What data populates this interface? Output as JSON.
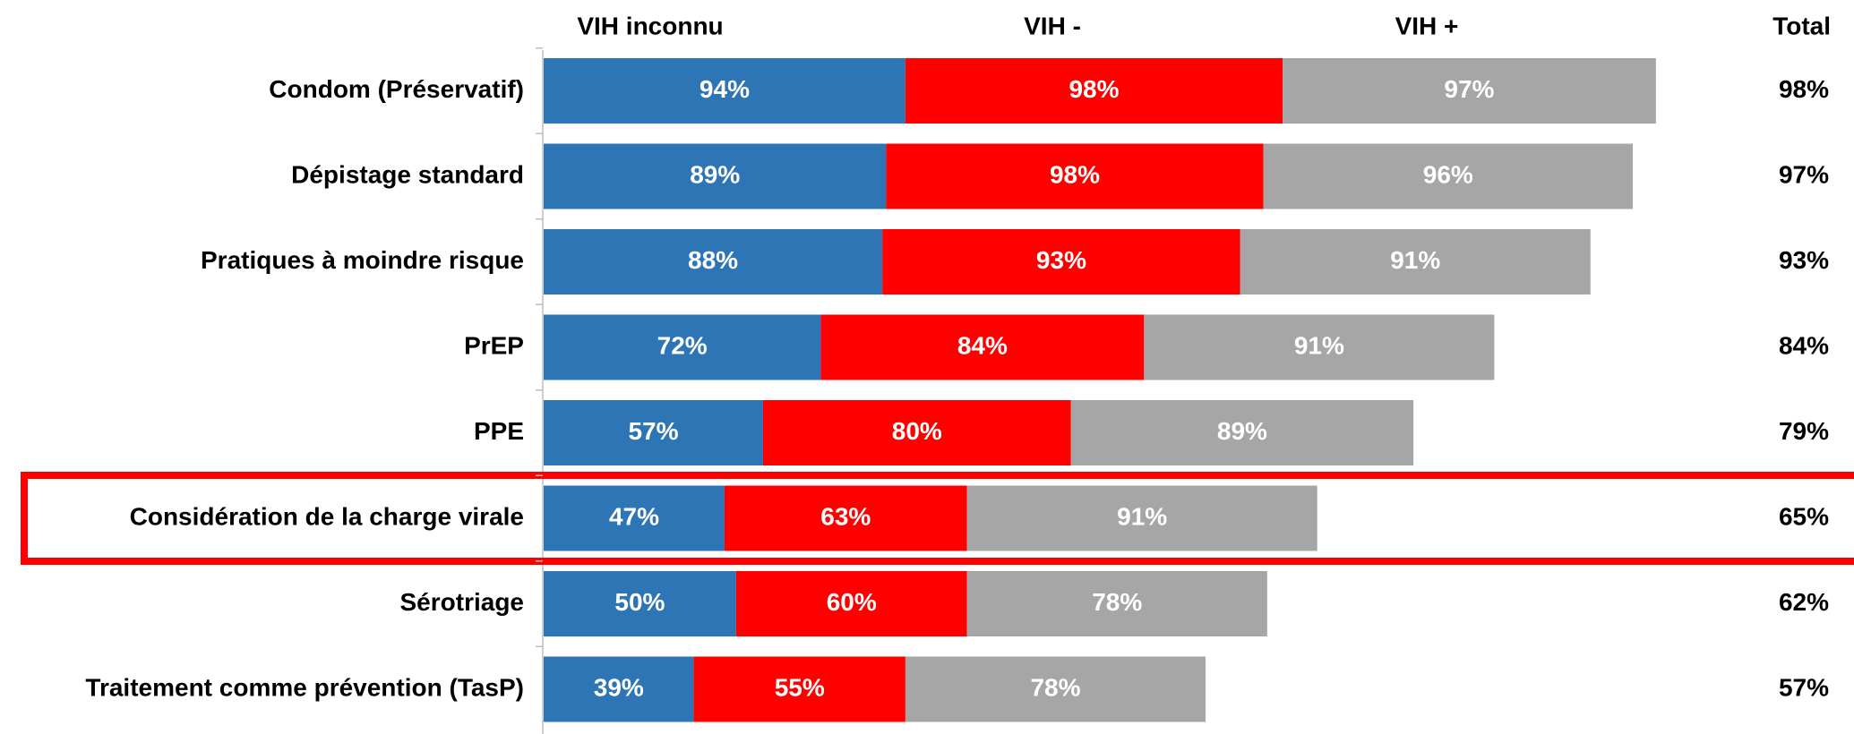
{
  "chart_data": {
    "type": "stacked_bar_horizontal",
    "categories": [
      "Condom (Préservatif)",
      "Dépistage standard",
      "Pratiques à moindre risque",
      "PrEP",
      "PPE",
      "Considération de la charge virale",
      "Sérotriage",
      "Traitement comme prévention (TasP)"
    ],
    "series": [
      {
        "name": "VIH inconnu",
        "color": "#2e75b6",
        "values": [
          94,
          89,
          88,
          72,
          57,
          47,
          50,
          39
        ],
        "value_labels": [
          "94%",
          "89%",
          "88%",
          "72%",
          "57%",
          "47%",
          "50%",
          "39%"
        ]
      },
      {
        "name": "VIH -",
        "color": "#ff0000",
        "values": [
          98,
          98,
          93,
          84,
          80,
          63,
          60,
          55
        ],
        "value_labels": [
          "98%",
          "98%",
          "93%",
          "84%",
          "80%",
          "63%",
          "60%",
          "55%"
        ]
      },
      {
        "name": "VIH +",
        "color": "#a6a6a6",
        "values": [
          97,
          96,
          91,
          91,
          89,
          91,
          78,
          78
        ],
        "value_labels": [
          "97%",
          "96%",
          "91%",
          "91%",
          "89%",
          "91%",
          "78%",
          "78%"
        ]
      }
    ],
    "total": {
      "name": "Total",
      "values": [
        98,
        97,
        93,
        84,
        79,
        65,
        62,
        57
      ],
      "value_labels": [
        "98%",
        "97%",
        "93%",
        "84%",
        "79%",
        "65%",
        "62%",
        "57%"
      ]
    },
    "highlight": 5,
    "highlight_color": "#ff0000"
  }
}
